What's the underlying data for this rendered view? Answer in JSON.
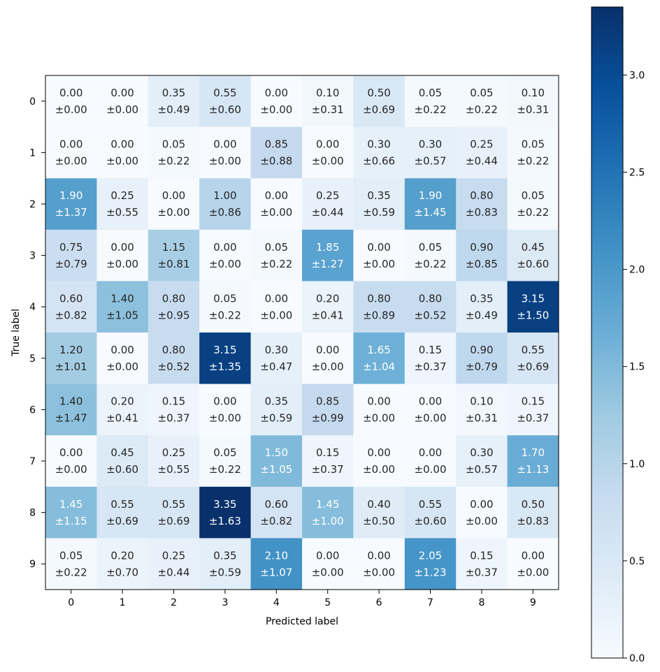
{
  "chart_data": {
    "type": "heatmap",
    "title": "",
    "xlabel": "Predicted label",
    "ylabel": "True label",
    "x_categories": [
      "0",
      "1",
      "2",
      "3",
      "4",
      "5",
      "6",
      "7",
      "8",
      "9"
    ],
    "y_categories": [
      "0",
      "1",
      "2",
      "3",
      "4",
      "5",
      "6",
      "7",
      "8",
      "9"
    ],
    "colormap": "Blues",
    "color_range": [
      0,
      3.35
    ],
    "colorbar_ticks": [
      "0.0",
      "0.5",
      "1.0",
      "1.5",
      "2.0",
      "2.5",
      "3.0"
    ],
    "values": [
      [
        0.0,
        0.0,
        0.35,
        0.55,
        0.0,
        0.1,
        0.5,
        0.05,
        0.05,
        0.1
      ],
      [
        0.0,
        0.0,
        0.05,
        0.0,
        0.85,
        0.0,
        0.3,
        0.3,
        0.25,
        0.05
      ],
      [
        1.9,
        0.25,
        0.0,
        1.0,
        0.0,
        0.25,
        0.35,
        1.9,
        0.8,
        0.05
      ],
      [
        0.75,
        0.0,
        1.15,
        0.0,
        0.05,
        1.85,
        0.0,
        0.05,
        0.9,
        0.45
      ],
      [
        0.6,
        1.4,
        0.8,
        0.05,
        0.0,
        0.2,
        0.8,
        0.8,
        0.35,
        3.15
      ],
      [
        1.2,
        0.0,
        0.8,
        3.15,
        0.3,
        0.0,
        1.65,
        0.15,
        0.9,
        0.55
      ],
      [
        1.4,
        0.2,
        0.15,
        0.0,
        0.35,
        0.85,
        0.0,
        0.0,
        0.1,
        0.15
      ],
      [
        0.0,
        0.45,
        0.25,
        0.05,
        1.5,
        0.15,
        0.0,
        0.0,
        0.3,
        1.7
      ],
      [
        1.45,
        0.55,
        0.55,
        3.35,
        0.6,
        1.45,
        0.4,
        0.55,
        0.0,
        0.5
      ],
      [
        0.05,
        0.2,
        0.25,
        0.35,
        2.1,
        0.0,
        0.0,
        2.05,
        0.15,
        0.0
      ]
    ],
    "errors": [
      [
        0.0,
        0.0,
        0.49,
        0.6,
        0.0,
        0.31,
        0.69,
        0.22,
        0.22,
        0.31
      ],
      [
        0.0,
        0.0,
        0.22,
        0.0,
        0.88,
        0.0,
        0.66,
        0.57,
        0.44,
        0.22
      ],
      [
        1.37,
        0.55,
        0.0,
        0.86,
        0.0,
        0.44,
        0.59,
        1.45,
        0.83,
        0.22
      ],
      [
        0.79,
        0.0,
        0.81,
        0.0,
        0.22,
        1.27,
        0.0,
        0.22,
        0.85,
        0.6
      ],
      [
        0.82,
        1.05,
        0.95,
        0.22,
        0.0,
        0.41,
        0.89,
        0.52,
        0.49,
        1.5
      ],
      [
        1.01,
        0.0,
        0.52,
        1.35,
        0.47,
        0.0,
        1.04,
        0.37,
        0.79,
        0.69
      ],
      [
        1.47,
        0.41,
        0.37,
        0.0,
        0.59,
        0.99,
        0.0,
        0.0,
        0.31,
        0.37
      ],
      [
        0.0,
        0.6,
        0.55,
        0.22,
        1.05,
        0.37,
        0.0,
        0.0,
        0.57,
        1.13
      ],
      [
        1.15,
        0.69,
        0.69,
        1.63,
        0.82,
        1.0,
        0.5,
        0.6,
        0.0,
        0.83
      ],
      [
        0.22,
        0.7,
        0.44,
        0.59,
        1.07,
        0.0,
        0.0,
        1.23,
        0.37,
        0.0
      ]
    ]
  }
}
